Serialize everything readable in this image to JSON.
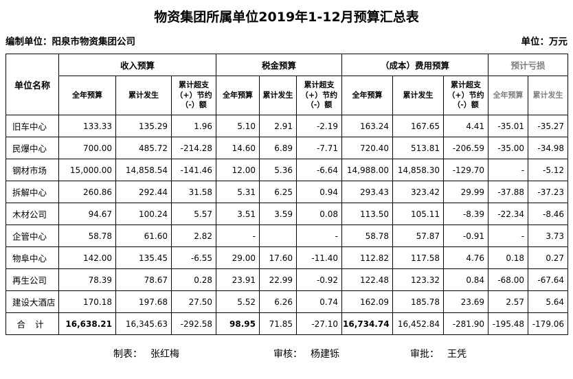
{
  "title": "物资集团所属单位2019年1-12月预算汇总表",
  "meta": {
    "prepared_by": "编制单位：阳泉市物资集团公司",
    "unit_note": "单位：万元"
  },
  "colors": {
    "text": "#000000",
    "muted_header": "#7f7f7f",
    "grid": "#000000"
  },
  "table": {
    "corner": "单位名称",
    "groups": [
      {
        "label": "收入预算",
        "span": 3
      },
      {
        "label": "税金预算",
        "span": 3
      },
      {
        "label": "（成本）费用预算",
        "span": 3
      },
      {
        "label": "预计亏损",
        "span": 2
      }
    ],
    "subheaders": [
      "全年预算",
      "累计发生",
      "累计超支\n（+）节约\n（-）额",
      "全年预算",
      "累计发生",
      "累计超支\n（+）节约\n（-）额",
      "全年预算",
      "累计发生",
      "累计超支\n（+）节约\n（-）额",
      "全年预算",
      "累计发生"
    ],
    "rows": [
      {
        "name": "旧车中心",
        "values": [
          "133.33",
          "135.29",
          "1.96",
          "5.10",
          "2.91",
          "-2.19",
          "163.24",
          "167.65",
          "4.41",
          "-35.01",
          "-35.27"
        ]
      },
      {
        "name": "民爆中心",
        "values": [
          "700.00",
          "485.72",
          "-214.28",
          "14.60",
          "6.89",
          "-7.71",
          "720.40",
          "513.81",
          "-206.59",
          "-35.00",
          "-34.98"
        ]
      },
      {
        "name": "钢材市场",
        "values": [
          "15,000.00",
          "14,858.54",
          "-141.46",
          "12.00",
          "5.36",
          "-6.64",
          "14,988.00",
          "14,858.30",
          "-129.70",
          "-",
          "-5.12"
        ]
      },
      {
        "name": "拆解中心",
        "values": [
          "260.86",
          "292.44",
          "31.58",
          "5.31",
          "6.25",
          "0.94",
          "293.43",
          "323.42",
          "29.99",
          "-37.88",
          "-37.23"
        ]
      },
      {
        "name": "木材公司",
        "values": [
          "94.67",
          "100.24",
          "5.57",
          "3.51",
          "3.59",
          "0.08",
          "113.50",
          "105.11",
          "-8.39",
          "-22.34",
          "-8.46"
        ]
      },
      {
        "name": "企管中心",
        "values": [
          "58.78",
          "61.60",
          "2.82",
          "-",
          "",
          "-",
          "58.78",
          "57.87",
          "-0.91",
          "-",
          "3.73"
        ]
      },
      {
        "name": "物阜中心",
        "values": [
          "142.00",
          "135.45",
          "-6.55",
          "29.00",
          "17.60",
          "-11.40",
          "112.82",
          "117.58",
          "4.76",
          "0.18",
          "0.27"
        ]
      },
      {
        "name": "再生公司",
        "values": [
          "78.39",
          "78.67",
          "0.28",
          "23.91",
          "22.99",
          "-0.92",
          "122.48",
          "123.32",
          "0.84",
          "-68.00",
          "-67.64"
        ]
      },
      {
        "name": "建设大酒店",
        "values": [
          "170.18",
          "197.68",
          "27.50",
          "5.52",
          "6.26",
          "0.74",
          "162.09",
          "185.78",
          "23.69",
          "2.57",
          "5.64"
        ]
      }
    ],
    "total": {
      "name": "合  计",
      "values": [
        "16,638.21",
        "16,345.63",
        "-292.58",
        "98.95",
        "71.85",
        "-27.10",
        "16,734.74",
        "16,452.84",
        "-281.90",
        "-195.48",
        "-179.06"
      ],
      "bold_indices": [
        0,
        3,
        6
      ]
    }
  },
  "footer": {
    "maker_label": "制表：",
    "maker": "张红梅",
    "reviewer_label": "审核：",
    "reviewer": "杨建铄",
    "approver_label": "审批：",
    "approver": "王凭"
  }
}
